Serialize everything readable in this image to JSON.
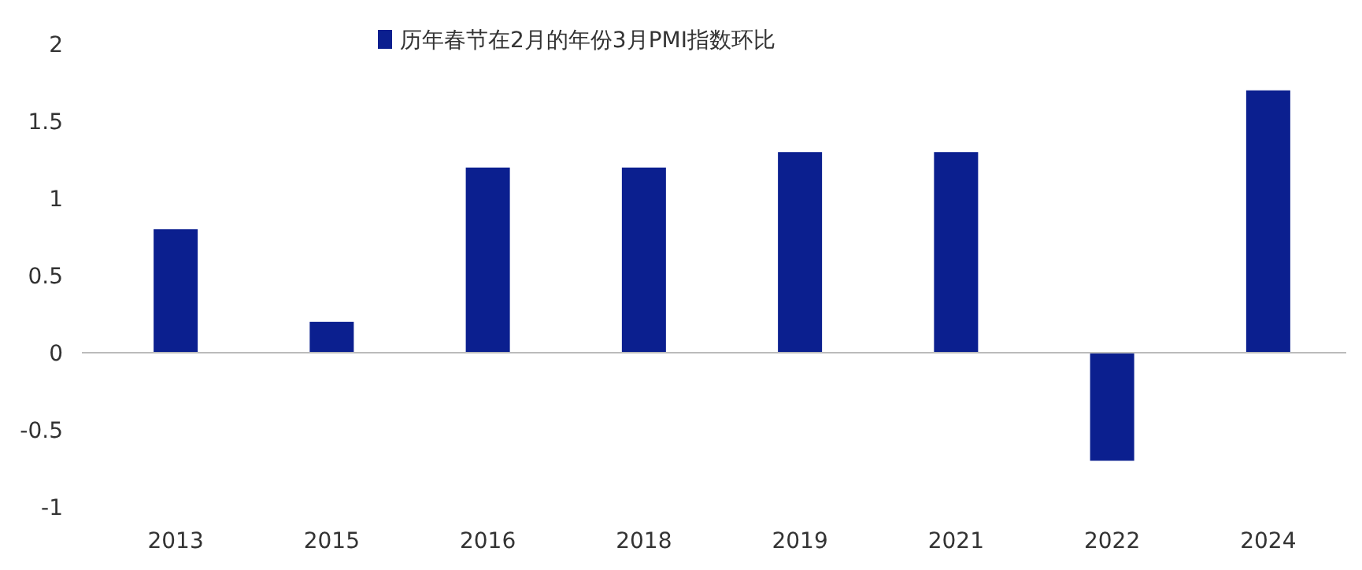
{
  "chart_data": {
    "type": "bar",
    "categories": [
      "2013",
      "2015",
      "2016",
      "2018",
      "2019",
      "2021",
      "2022",
      "2024"
    ],
    "series": [
      {
        "name": "历年春节在2月的年份3月PMI指数环比",
        "color": "#0b1f8f",
        "values": [
          0.8,
          0.2,
          1.2,
          1.2,
          1.3,
          1.3,
          -0.7,
          1.7
        ]
      }
    ],
    "ylim": [
      -1,
      2
    ],
    "yticks": [
      -1,
      -0.5,
      0,
      0.5,
      1,
      1.5,
      2
    ],
    "legend": "top"
  }
}
